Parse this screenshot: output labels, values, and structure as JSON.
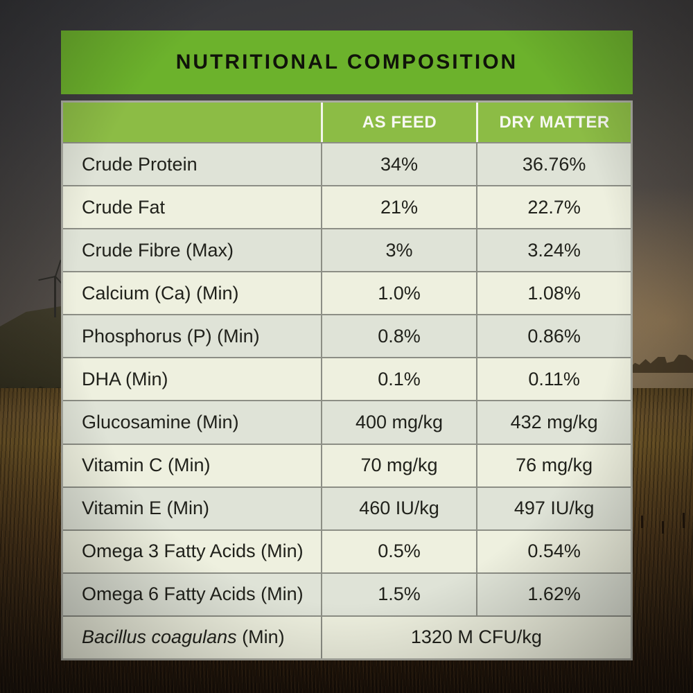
{
  "page": {
    "title_bar": "NUTRITIONAL COMPOSITION"
  },
  "table": {
    "header": {
      "as_feed": "AS FEED",
      "dry_matter": "DRY MATTER"
    },
    "rows": [
      {
        "label": "Crude Protein",
        "as_feed": "34%",
        "dry_matter": "36.76%"
      },
      {
        "label": "Crude Fat",
        "as_feed": "21%",
        "dry_matter": "22.7%"
      },
      {
        "label": "Crude Fibre (Max)",
        "as_feed": "3%",
        "dry_matter": "3.24%"
      },
      {
        "label": "Calcium (Ca) (Min)",
        "as_feed": "1.0%",
        "dry_matter": "1.08%"
      },
      {
        "label": "Phosphorus (P) (Min)",
        "as_feed": "0.8%",
        "dry_matter": "0.86%"
      },
      {
        "label": "DHA (Min)",
        "as_feed": "0.1%",
        "dry_matter": "0.11%"
      },
      {
        "label": "Glucosamine (Min)",
        "as_feed": "400 mg/kg",
        "dry_matter": "432 mg/kg"
      },
      {
        "label": "Vitamin C (Min)",
        "as_feed": "70 mg/kg",
        "dry_matter": "76 mg/kg"
      },
      {
        "label": "Vitamin E (Min)",
        "as_feed": "460 IU/kg",
        "dry_matter": "497 IU/kg"
      },
      {
        "label": "Omega 3 Fatty Acids (Min)",
        "as_feed": "0.5%",
        "dry_matter": "0.54%"
      },
      {
        "label": "Omega 6 Fatty Acids (Min)",
        "as_feed": "1.5%",
        "dry_matter": "1.62%"
      }
    ],
    "last_row": {
      "label_italic": "Bacillus coagulans",
      "label_rest": " (Min)",
      "value": "1320 M CFU/kg"
    }
  },
  "colors": {
    "banner_green": "#6cb22c",
    "header_green": "#8cbc45",
    "row_gray": "#dfe3d7",
    "row_cream": "#eef0df",
    "grid_line": "#8c8e85",
    "outer_border": "#aaaba2",
    "title_text": "#10130a",
    "header_text": "#f7f8f2",
    "body_text": "#20211b"
  }
}
